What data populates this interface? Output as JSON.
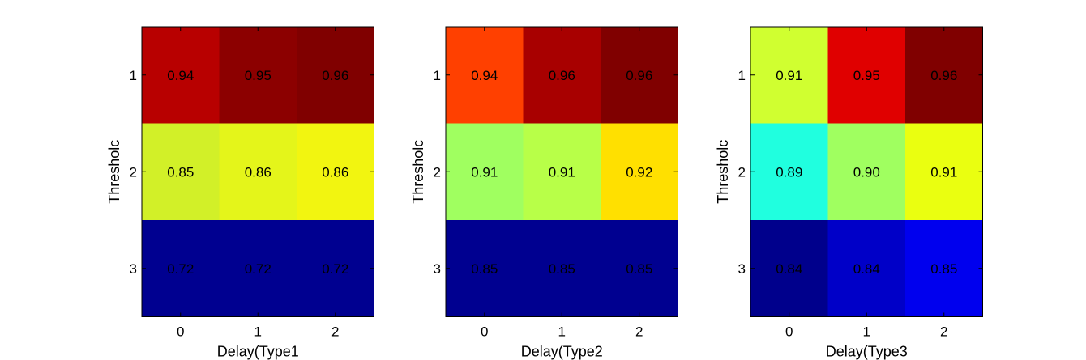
{
  "chart_data": [
    {
      "type": "heatmap",
      "xlabel": "Delay(Type1",
      "ylabel": "Thresholc",
      "x_categories": [
        "0",
        "1",
        "2"
      ],
      "y_categories": [
        "1",
        "2",
        "3"
      ],
      "values": [
        [
          0.94,
          0.95,
          0.96
        ],
        [
          0.85,
          0.86,
          0.86
        ],
        [
          0.72,
          0.72,
          0.72
        ]
      ],
      "value_labels": [
        [
          "0.94",
          "0.95",
          "0.96"
        ],
        [
          "0.85",
          "0.86",
          "0.86"
        ],
        [
          "0.72",
          "0.72",
          "0.72"
        ]
      ],
      "cell_colors": [
        [
          "#b80000",
          "#8c0000",
          "#800000"
        ],
        [
          "#d2f028",
          "#e4f51a",
          "#f2f510"
        ],
        [
          "#000090",
          "#000090",
          "#000090"
        ]
      ],
      "colormap": "jet",
      "grid": false,
      "legend": "none"
    },
    {
      "type": "heatmap",
      "xlabel": "Delay(Type2",
      "ylabel": "Thresholc",
      "x_categories": [
        "0",
        "1",
        "2"
      ],
      "y_categories": [
        "1",
        "2",
        "3"
      ],
      "values": [
        [
          0.94,
          0.96,
          0.96
        ],
        [
          0.91,
          0.91,
          0.92
        ],
        [
          0.85,
          0.85,
          0.85
        ]
      ],
      "value_labels": [
        [
          "0.94",
          "0.96",
          "0.96"
        ],
        [
          "0.91",
          "0.91",
          "0.92"
        ],
        [
          "0.85",
          "0.85",
          "0.85"
        ]
      ],
      "cell_colors": [
        [
          "#ff4000",
          "#a80000",
          "#800000"
        ],
        [
          "#a0ff60",
          "#b8ff48",
          "#ffe000"
        ],
        [
          "#000090",
          "#000090",
          "#000090"
        ]
      ],
      "colormap": "jet",
      "grid": false,
      "legend": "none"
    },
    {
      "type": "heatmap",
      "xlabel": "Delay(Type3",
      "ylabel": "Thresholc",
      "x_categories": [
        "0",
        "1",
        "2"
      ],
      "y_categories": [
        "1",
        "2",
        "3"
      ],
      "values": [
        [
          0.91,
          0.95,
          0.96
        ],
        [
          0.89,
          0.9,
          0.91
        ],
        [
          0.84,
          0.84,
          0.85
        ]
      ],
      "value_labels": [
        [
          "0.91",
          "0.95",
          "0.96"
        ],
        [
          "0.89",
          "0.90",
          "0.91"
        ],
        [
          "0.84",
          "0.84",
          "0.85"
        ]
      ],
      "cell_colors": [
        [
          "#d0ff30",
          "#e00000",
          "#800000"
        ],
        [
          "#20ffdf",
          "#a0ff60",
          "#eaff10"
        ],
        [
          "#00008c",
          "#0000c8",
          "#0000ee"
        ]
      ],
      "colormap": "jet",
      "grid": false,
      "legend": "none"
    }
  ]
}
